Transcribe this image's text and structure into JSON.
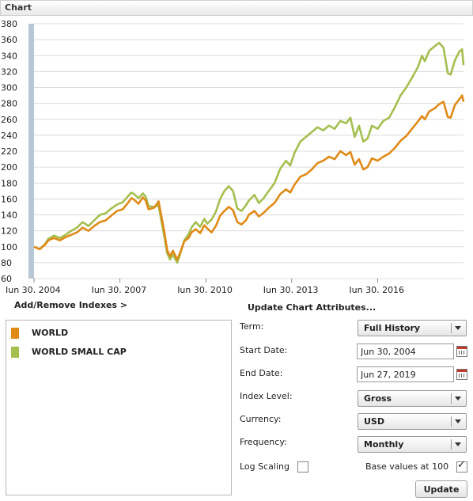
{
  "header": {
    "title": "Chart"
  },
  "colors": {
    "world": "#e08a17",
    "world_small_cap": "#a4bf4f",
    "grid": "#dcdcdc",
    "scrollbar": "#b8c7d6"
  },
  "chart_data": {
    "type": "line",
    "yticks": [
      60,
      80,
      100,
      120,
      140,
      160,
      180,
      200,
      220,
      240,
      260,
      280,
      300,
      320,
      340,
      360,
      380
    ],
    "ylim": [
      60,
      380
    ],
    "xlim": [
      2004.5,
      2019.5
    ],
    "xticks": [
      {
        "label": "Jun 30, 2004",
        "x": 2004.5
      },
      {
        "label": "Jun 30, 2007",
        "x": 2007.5
      },
      {
        "label": "Jun 30, 2010",
        "x": 2010.5
      },
      {
        "label": "Jun 30, 2013",
        "x": 2013.5
      },
      {
        "label": "Jun 30, 2016",
        "x": 2016.5
      }
    ],
    "grid": true,
    "series": [
      {
        "name": "WORLD",
        "color": "#e08a17",
        "points": [
          [
            2004.5,
            100
          ],
          [
            2004.7,
            97
          ],
          [
            2004.9,
            103
          ],
          [
            2005.0,
            108
          ],
          [
            2005.2,
            111
          ],
          [
            2005.4,
            108
          ],
          [
            2005.6,
            112
          ],
          [
            2005.8,
            115
          ],
          [
            2006.0,
            118
          ],
          [
            2006.2,
            124
          ],
          [
            2006.4,
            120
          ],
          [
            2006.6,
            126
          ],
          [
            2006.8,
            131
          ],
          [
            2007.0,
            133
          ],
          [
            2007.2,
            139
          ],
          [
            2007.4,
            145
          ],
          [
            2007.6,
            147
          ],
          [
            2007.8,
            156
          ],
          [
            2007.9,
            161
          ],
          [
            2008.0,
            159
          ],
          [
            2008.15,
            154
          ],
          [
            2008.3,
            162
          ],
          [
            2008.4,
            158
          ],
          [
            2008.5,
            147
          ],
          [
            2008.7,
            149
          ],
          [
            2008.85,
            157
          ],
          [
            2008.95,
            138
          ],
          [
            2009.05,
            119
          ],
          [
            2009.15,
            96
          ],
          [
            2009.25,
            88
          ],
          [
            2009.35,
            95
          ],
          [
            2009.5,
            84
          ],
          [
            2009.6,
            92
          ],
          [
            2009.75,
            107
          ],
          [
            2009.9,
            111
          ],
          [
            2010.0,
            118
          ],
          [
            2010.15,
            122
          ],
          [
            2010.3,
            117
          ],
          [
            2010.45,
            127
          ],
          [
            2010.55,
            123
          ],
          [
            2010.7,
            118
          ],
          [
            2010.85,
            126
          ],
          [
            2011.0,
            139
          ],
          [
            2011.15,
            145
          ],
          [
            2011.3,
            150
          ],
          [
            2011.45,
            146
          ],
          [
            2011.6,
            131
          ],
          [
            2011.75,
            128
          ],
          [
            2011.9,
            133
          ],
          [
            2012.0,
            140
          ],
          [
            2012.2,
            145
          ],
          [
            2012.35,
            138
          ],
          [
            2012.5,
            142
          ],
          [
            2012.7,
            149
          ],
          [
            2012.9,
            155
          ],
          [
            2013.1,
            166
          ],
          [
            2013.3,
            172
          ],
          [
            2013.45,
            168
          ],
          [
            2013.6,
            178
          ],
          [
            2013.8,
            188
          ],
          [
            2014.0,
            191
          ],
          [
            2014.2,
            197
          ],
          [
            2014.4,
            205
          ],
          [
            2014.6,
            208
          ],
          [
            2014.8,
            213
          ],
          [
            2015.0,
            210
          ],
          [
            2015.2,
            220
          ],
          [
            2015.4,
            215
          ],
          [
            2015.55,
            219
          ],
          [
            2015.7,
            203
          ],
          [
            2015.85,
            210
          ],
          [
            2016.0,
            197
          ],
          [
            2016.15,
            200
          ],
          [
            2016.3,
            211
          ],
          [
            2016.5,
            208
          ],
          [
            2016.7,
            213
          ],
          [
            2016.9,
            217
          ],
          [
            2017.1,
            224
          ],
          [
            2017.3,
            233
          ],
          [
            2017.5,
            239
          ],
          [
            2017.7,
            248
          ],
          [
            2017.9,
            257
          ],
          [
            2018.05,
            264
          ],
          [
            2018.15,
            260
          ],
          [
            2018.3,
            270
          ],
          [
            2018.5,
            274
          ],
          [
            2018.65,
            279
          ],
          [
            2018.8,
            282
          ],
          [
            2018.95,
            263
          ],
          [
            2019.05,
            262
          ],
          [
            2019.2,
            278
          ],
          [
            2019.35,
            285
          ],
          [
            2019.45,
            290
          ],
          [
            2019.5,
            282
          ]
        ]
      },
      {
        "name": "WORLD SMALL CAP",
        "color": "#a4bf4f",
        "points": [
          [
            2004.5,
            100
          ],
          [
            2004.7,
            97
          ],
          [
            2004.9,
            104
          ],
          [
            2005.0,
            110
          ],
          [
            2005.2,
            114
          ],
          [
            2005.4,
            111
          ],
          [
            2005.6,
            115
          ],
          [
            2005.8,
            120
          ],
          [
            2006.0,
            124
          ],
          [
            2006.2,
            131
          ],
          [
            2006.4,
            126
          ],
          [
            2006.6,
            133
          ],
          [
            2006.8,
            140
          ],
          [
            2007.0,
            142
          ],
          [
            2007.2,
            148
          ],
          [
            2007.4,
            153
          ],
          [
            2007.6,
            156
          ],
          [
            2007.8,
            164
          ],
          [
            2007.9,
            168
          ],
          [
            2008.0,
            166
          ],
          [
            2008.15,
            161
          ],
          [
            2008.3,
            167
          ],
          [
            2008.4,
            163
          ],
          [
            2008.5,
            151
          ],
          [
            2008.7,
            150
          ],
          [
            2008.85,
            152
          ],
          [
            2008.95,
            132
          ],
          [
            2009.05,
            113
          ],
          [
            2009.15,
            92
          ],
          [
            2009.25,
            84
          ],
          [
            2009.35,
            90
          ],
          [
            2009.5,
            80
          ],
          [
            2009.6,
            90
          ],
          [
            2009.75,
            108
          ],
          [
            2009.9,
            116
          ],
          [
            2010.0,
            124
          ],
          [
            2010.15,
            131
          ],
          [
            2010.3,
            125
          ],
          [
            2010.45,
            135
          ],
          [
            2010.55,
            129
          ],
          [
            2010.7,
            134
          ],
          [
            2010.85,
            144
          ],
          [
            2011.0,
            160
          ],
          [
            2011.15,
            170
          ],
          [
            2011.3,
            176
          ],
          [
            2011.45,
            170
          ],
          [
            2011.6,
            148
          ],
          [
            2011.75,
            145
          ],
          [
            2011.9,
            152
          ],
          [
            2012.0,
            158
          ],
          [
            2012.2,
            165
          ],
          [
            2012.35,
            155
          ],
          [
            2012.5,
            160
          ],
          [
            2012.7,
            170
          ],
          [
            2012.9,
            180
          ],
          [
            2013.1,
            198
          ],
          [
            2013.3,
            208
          ],
          [
            2013.45,
            202
          ],
          [
            2013.6,
            218
          ],
          [
            2013.8,
            232
          ],
          [
            2014.0,
            238
          ],
          [
            2014.2,
            244
          ],
          [
            2014.4,
            250
          ],
          [
            2014.6,
            246
          ],
          [
            2014.8,
            252
          ],
          [
            2015.0,
            248
          ],
          [
            2015.2,
            258
          ],
          [
            2015.4,
            255
          ],
          [
            2015.55,
            262
          ],
          [
            2015.7,
            238
          ],
          [
            2015.85,
            252
          ],
          [
            2016.0,
            232
          ],
          [
            2016.15,
            236
          ],
          [
            2016.3,
            252
          ],
          [
            2016.5,
            248
          ],
          [
            2016.7,
            258
          ],
          [
            2016.9,
            262
          ],
          [
            2017.1,
            275
          ],
          [
            2017.3,
            290
          ],
          [
            2017.5,
            300
          ],
          [
            2017.7,
            312
          ],
          [
            2017.9,
            325
          ],
          [
            2018.05,
            340
          ],
          [
            2018.15,
            333
          ],
          [
            2018.3,
            346
          ],
          [
            2018.5,
            352
          ],
          [
            2018.65,
            356
          ],
          [
            2018.8,
            350
          ],
          [
            2018.95,
            318
          ],
          [
            2019.05,
            316
          ],
          [
            2019.2,
            334
          ],
          [
            2019.35,
            345
          ],
          [
            2019.45,
            348
          ],
          [
            2019.5,
            328
          ]
        ]
      }
    ]
  },
  "left_panel": {
    "add_remove_label": "Add/Remove Indexes >",
    "legend": [
      {
        "label": "WORLD",
        "color": "#e08a17"
      },
      {
        "label": "WORLD SMALL CAP",
        "color": "#a4bf4f"
      }
    ]
  },
  "attributes": {
    "title": "Update Chart Attributes...",
    "term_label": "Term:",
    "term_value": "Full History",
    "start_label": "Start Date:",
    "start_value": "Jun 30, 2004",
    "end_label": "End Date:",
    "end_value": "Jun 27, 2019",
    "index_level_label": "Index Level:",
    "index_level_value": "Gross",
    "currency_label": "Currency:",
    "currency_value": "USD",
    "frequency_label": "Frequency:",
    "frequency_value": "Monthly",
    "log_scaling_label": "Log Scaling",
    "log_scaling_checked": false,
    "base_values_label": "Base values at 100",
    "base_values_checked": true,
    "update_label": "Update"
  }
}
